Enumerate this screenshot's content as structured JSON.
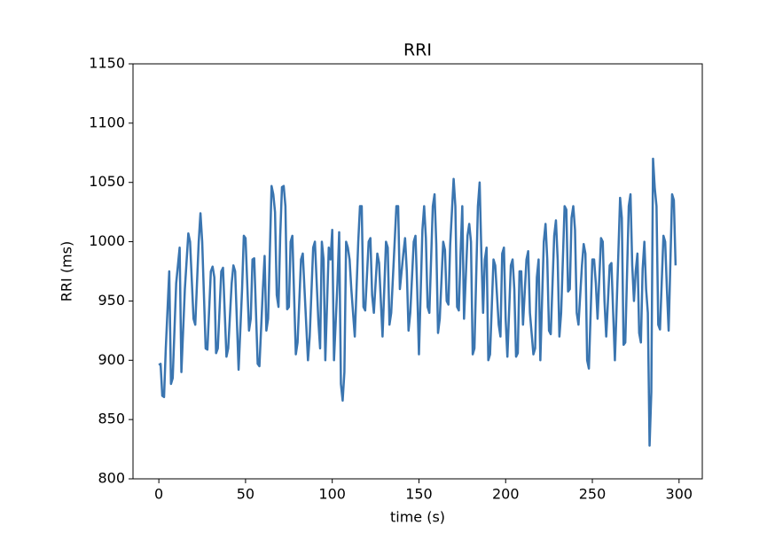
{
  "chart_data": {
    "type": "line",
    "title": "RRI",
    "x_label": "time (s)",
    "y_label": "RRI (ms)",
    "color": "#3a75b0",
    "x": [
      0,
      1,
      2,
      3,
      4,
      6,
      7,
      8,
      10,
      12,
      13,
      15,
      17,
      18,
      20,
      21,
      23,
      24,
      25,
      27,
      28,
      30,
      31,
      32,
      33,
      34,
      36,
      37,
      39,
      40,
      42,
      43,
      44,
      46,
      48,
      49,
      50,
      52,
      53,
      54,
      55,
      57,
      58,
      60,
      61,
      62,
      63,
      65,
      66,
      67,
      68,
      69,
      70,
      71,
      72,
      73,
      74,
      75,
      76,
      77,
      79,
      80,
      82,
      83,
      84,
      86,
      87,
      89,
      90,
      92,
      93,
      94,
      95,
      96,
      98,
      99,
      100,
      101,
      103,
      104,
      105,
      106,
      107,
      108,
      109,
      110,
      111,
      113,
      115,
      116,
      117,
      118,
      119,
      121,
      122,
      123,
      124,
      126,
      127,
      129,
      131,
      132,
      133,
      134,
      136,
      137,
      138,
      139,
      141,
      142,
      143,
      144,
      145,
      147,
      148,
      149,
      150,
      152,
      153,
      154,
      155,
      156,
      158,
      159,
      160,
      161,
      162,
      164,
      165,
      166,
      167,
      168,
      170,
      171,
      172,
      173,
      174,
      175,
      176,
      178,
      179,
      180,
      181,
      182,
      184,
      185,
      186,
      187,
      188,
      189,
      190,
      191,
      193,
      194,
      196,
      197,
      198,
      199,
      200,
      201,
      203,
      204,
      205,
      206,
      207,
      208,
      209,
      210,
      212,
      213,
      214,
      216,
      217,
      218,
      219,
      220,
      222,
      223,
      224,
      225,
      226,
      228,
      229,
      230,
      231,
      232,
      234,
      235,
      236,
      237,
      238,
      239,
      240,
      241,
      242,
      244,
      245,
      246,
      247,
      248,
      250,
      251,
      252,
      253,
      255,
      256,
      257,
      258,
      260,
      261,
      262,
      263,
      265,
      266,
      267,
      268,
      269,
      271,
      272,
      273,
      274,
      275,
      276,
      277,
      278,
      279,
      280,
      281,
      282,
      283,
      284,
      285,
      286,
      287,
      288,
      289,
      291,
      292,
      293,
      294,
      296,
      297,
      298
    ],
    "values": [
      896,
      897,
      870,
      869,
      910,
      975,
      880,
      885,
      965,
      995,
      890,
      960,
      1007,
      1000,
      935,
      930,
      1000,
      1024,
      1000,
      910,
      909,
      975,
      979,
      970,
      906,
      910,
      975,
      978,
      903,
      910,
      965,
      980,
      975,
      892,
      960,
      1005,
      1003,
      925,
      935,
      985,
      986,
      897,
      895,
      960,
      988,
      925,
      935,
      1047,
      1040,
      1025,
      955,
      945,
      1005,
      1046,
      1047,
      1030,
      943,
      945,
      1000,
      1005,
      905,
      915,
      985,
      990,
      960,
      900,
      920,
      995,
      1000,
      933,
      910,
      1000,
      985,
      900,
      995,
      985,
      1010,
      900,
      965,
      1008,
      880,
      866,
      890,
      1000,
      995,
      985,
      960,
      920,
      1000,
      1030,
      1030,
      945,
      942,
      1000,
      1003,
      955,
      940,
      990,
      982,
      920,
      1000,
      995,
      930,
      940,
      1000,
      1030,
      1030,
      960,
      990,
      1003,
      975,
      925,
      940,
      1000,
      1005,
      960,
      905,
      1010,
      1030,
      1003,
      945,
      940,
      1030,
      1040,
      998,
      923,
      935,
      1000,
      993,
      950,
      947,
      997,
      1053,
      1030,
      945,
      942,
      990,
      1030,
      935,
      1005,
      1015,
      1000,
      905,
      910,
      1030,
      1050,
      990,
      940,
      985,
      995,
      900,
      905,
      985,
      980,
      930,
      920,
      990,
      995,
      935,
      903,
      980,
      985,
      960,
      903,
      906,
      975,
      975,
      930,
      985,
      992,
      940,
      905,
      910,
      970,
      985,
      900,
      1000,
      1015,
      985,
      925,
      922,
      1005,
      1018,
      985,
      920,
      940,
      1030,
      1027,
      958,
      960,
      1020,
      1030,
      1010,
      940,
      930,
      980,
      998,
      990,
      900,
      893,
      985,
      985,
      965,
      935,
      1003,
      1000,
      950,
      920,
      980,
      982,
      940,
      900,
      990,
      1037,
      1020,
      913,
      915,
      1030,
      1040,
      980,
      950,
      975,
      990,
      923,
      915,
      977,
      1000,
      960,
      940,
      828,
      873,
      1070,
      1045,
      1030,
      930,
      926,
      1005,
      1000,
      960,
      925,
      1040,
      1035,
      980
    ],
    "xlim": [
      -14.9,
      313.4
    ],
    "ylim": [
      800,
      1150
    ],
    "xticks": [
      0,
      50,
      100,
      150,
      200,
      250,
      300
    ],
    "yticks": [
      800,
      850,
      900,
      950,
      1000,
      1050,
      1100,
      1150
    ]
  }
}
